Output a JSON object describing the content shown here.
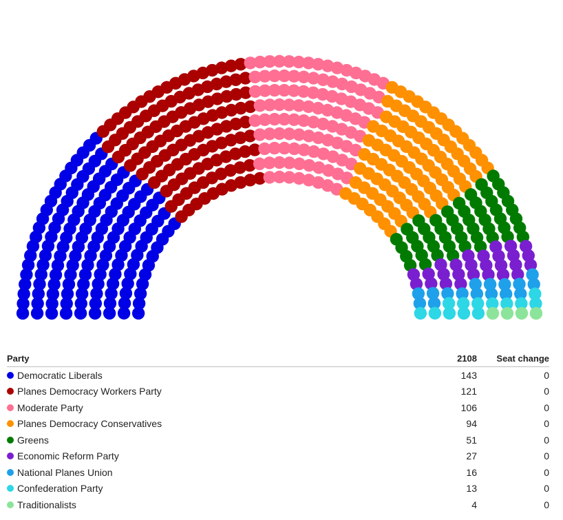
{
  "chart_data": {
    "type": "parliament",
    "total_seats": 2108,
    "parties": [
      {
        "name": "Democratic Liberals",
        "seats": 143,
        "seat_change": 0,
        "color": "#0000e6"
      },
      {
        "name": "Planes Democracy Workers Party",
        "seats": 121,
        "seat_change": 0,
        "color": "#aa0000"
      },
      {
        "name": "Moderate Party",
        "seats": 106,
        "seat_change": 0,
        "color": "#ff6f93"
      },
      {
        "name": "Planes Democracy Conservatives",
        "seats": 94,
        "seat_change": 0,
        "color": "#ff9000"
      },
      {
        "name": "Greens",
        "seats": 51,
        "seat_change": 0,
        "color": "#007b00"
      },
      {
        "name": "Economic Reform Party",
        "seats": 27,
        "seat_change": 0,
        "color": "#7a1fd0"
      },
      {
        "name": "National Planes Union",
        "seats": 16,
        "seat_change": 0,
        "color": "#1fa0ea"
      },
      {
        "name": "Confederation Party",
        "seats": 13,
        "seat_change": 0,
        "color": "#2dd7e6"
      },
      {
        "name": "Traditionalists",
        "seats": 4,
        "seat_change": 0,
        "color": "#8ce49a"
      }
    ]
  },
  "table": {
    "col_party": "Party",
    "col_seats": "2108",
    "col_change": "Seat change",
    "rows": [
      {
        "party": "Democratic Liberals",
        "seats": "143",
        "change": "0"
      },
      {
        "party": "Planes Democracy Workers Party",
        "seats": "121",
        "change": "0"
      },
      {
        "party": "Moderate Party",
        "seats": "106",
        "change": "0"
      },
      {
        "party": "Planes Democracy Conservatives",
        "seats": "94",
        "change": "0"
      },
      {
        "party": "Greens",
        "seats": "51",
        "change": "0"
      },
      {
        "party": "Economic Reform Party",
        "seats": "27",
        "change": "0"
      },
      {
        "party": "National Planes Union",
        "seats": "16",
        "change": "0"
      },
      {
        "party": "Confederation Party",
        "seats": "13",
        "change": "0"
      },
      {
        "party": "Traditionalists",
        "seats": "4",
        "change": "0"
      }
    ]
  }
}
